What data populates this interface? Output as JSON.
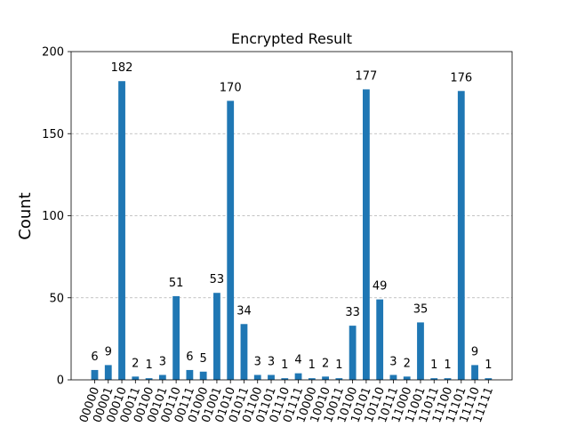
{
  "chart_data": {
    "type": "bar",
    "title": "Encrypted Result",
    "xlabel": "",
    "ylabel": "Count",
    "ylim": [
      0,
      200
    ],
    "yticks": [
      0,
      50,
      100,
      150,
      200
    ],
    "grid": "horizontal-dashed",
    "bar_color": "#1f77b4",
    "categories": [
      "00000",
      "00001",
      "00010",
      "00011",
      "00100",
      "00101",
      "00110",
      "00111",
      "01000",
      "01001",
      "01010",
      "01011",
      "01100",
      "01101",
      "01110",
      "01111",
      "10000",
      "10010",
      "10011",
      "10100",
      "10101",
      "10110",
      "10111",
      "11000",
      "11001",
      "11011",
      "11100",
      "11101",
      "11110",
      "11111"
    ],
    "values": [
      6,
      9,
      182,
      2,
      1,
      3,
      51,
      6,
      5,
      53,
      170,
      34,
      3,
      3,
      1,
      4,
      1,
      2,
      1,
      33,
      177,
      49,
      3,
      2,
      35,
      1,
      1,
      176,
      9,
      1
    ]
  }
}
